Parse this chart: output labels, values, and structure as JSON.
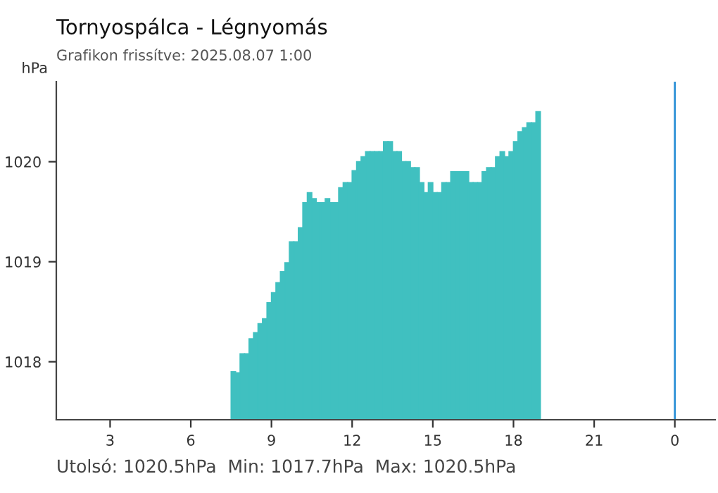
{
  "chart_data": {
    "type": "bar",
    "title": "Tornyospálca - Légnyomás",
    "subtitle": "Grafikon frissítve: 2025.08.07 1:00",
    "ylabel": "hPa",
    "x": [
      "2025-08-06T07:35",
      "2025-08-06T07:45",
      "2025-08-06T07:55",
      "2025-08-06T08:05",
      "2025-08-06T08:15",
      "2025-08-06T08:25",
      "2025-08-06T08:35",
      "2025-08-06T08:45",
      "2025-08-06T08:55",
      "2025-08-06T09:05",
      "2025-08-06T09:15",
      "2025-08-06T09:25",
      "2025-08-06T09:35",
      "2025-08-06T09:45",
      "2025-08-06T09:55",
      "2025-08-06T10:05",
      "2025-08-06T10:15",
      "2025-08-06T10:25",
      "2025-08-06T10:35",
      "2025-08-06T10:45",
      "2025-08-06T10:55",
      "2025-08-06T11:05",
      "2025-08-06T11:15",
      "2025-08-06T11:25",
      "2025-08-06T11:35",
      "2025-08-06T11:45",
      "2025-08-06T11:55",
      "2025-08-06T12:05",
      "2025-08-06T12:15",
      "2025-08-06T12:25",
      "2025-08-06T12:35",
      "2025-08-06T12:45",
      "2025-08-06T12:55",
      "2025-08-06T13:05",
      "2025-08-06T13:15",
      "2025-08-06T13:25",
      "2025-08-06T13:35",
      "2025-08-06T13:45",
      "2025-08-06T13:55",
      "2025-08-06T14:05",
      "2025-08-06T14:15",
      "2025-08-06T14:25",
      "2025-08-06T14:35",
      "2025-08-06T14:45",
      "2025-08-06T14:55",
      "2025-08-06T15:05",
      "2025-08-06T15:15",
      "2025-08-06T15:25",
      "2025-08-06T15:35",
      "2025-08-06T15:45",
      "2025-08-06T15:55",
      "2025-08-06T16:05",
      "2025-08-06T16:15",
      "2025-08-06T16:25",
      "2025-08-06T16:35",
      "2025-08-06T16:45",
      "2025-08-06T16:55",
      "2025-08-06T17:05",
      "2025-08-06T17:15",
      "2025-08-06T17:25",
      "2025-08-06T17:35",
      "2025-08-06T17:45",
      "2025-08-06T17:55",
      "2025-08-06T18:05",
      "2025-08-06T18:15",
      "2025-08-06T18:25",
      "2025-08-06T18:35",
      "2025-08-06T18:45",
      "2025-08-06T18:55"
    ],
    "series": [
      {
        "color": "#40c0c0",
        "values": [
          1017.9,
          1017.89,
          1018.08,
          1018.08,
          1018.23,
          1018.29,
          1018.38,
          1018.43,
          1018.59,
          1018.69,
          1018.79,
          1018.9,
          1018.99,
          1019.2,
          1019.2,
          1019.34,
          1019.59,
          1019.69,
          1019.63,
          1019.59,
          1019.59,
          1019.63,
          1019.59,
          1019.59,
          1019.74,
          1019.79,
          1019.79,
          1019.91,
          1020.0,
          1020.05,
          1020.1,
          1020.1,
          1020.1,
          1020.1,
          1020.2,
          1020.2,
          1020.1,
          1020.1,
          1020.0,
          1020.0,
          1019.94,
          1019.94,
          1019.79,
          1019.69,
          1019.79,
          1019.69,
          1019.69,
          1019.79,
          1019.79,
          1019.9,
          1019.9,
          1019.9,
          1019.9,
          1019.79,
          1019.79,
          1019.79,
          1019.9,
          1019.94,
          1019.94,
          1020.05,
          1020.1,
          1020.05,
          1020.1,
          1020.2,
          1020.3,
          1020.34,
          1020.39,
          1020.39,
          1020.5
        ]
      }
    ],
    "xlim": [
      "2025-08-06T01:00",
      "2025-08-07T01:30"
    ],
    "xticks": [
      {
        "value": "2025-08-06T03:00",
        "label": "3"
      },
      {
        "value": "2025-08-06T06:00",
        "label": "6"
      },
      {
        "value": "2025-08-06T09:00",
        "label": "9"
      },
      {
        "value": "2025-08-06T12:00",
        "label": "12"
      },
      {
        "value": "2025-08-06T15:00",
        "label": "15"
      },
      {
        "value": "2025-08-06T18:00",
        "label": "18"
      },
      {
        "value": "2025-08-06T21:00",
        "label": "21"
      },
      {
        "value": "2025-08-07T00:00",
        "label": "0"
      }
    ],
    "ylim": [
      1017.42,
      1020.8
    ],
    "yticks": [
      1018,
      1019,
      1020
    ],
    "ref_lines": [
      {
        "axis": "x",
        "value": "2025-08-07T00:00",
        "color": "#2a8fd6"
      }
    ],
    "annotations": [
      "Utolsó: 1020.5hPa  Min: 1017.7hPa  Max: 1020.5hPa"
    ],
    "grid": false,
    "legend": false
  }
}
